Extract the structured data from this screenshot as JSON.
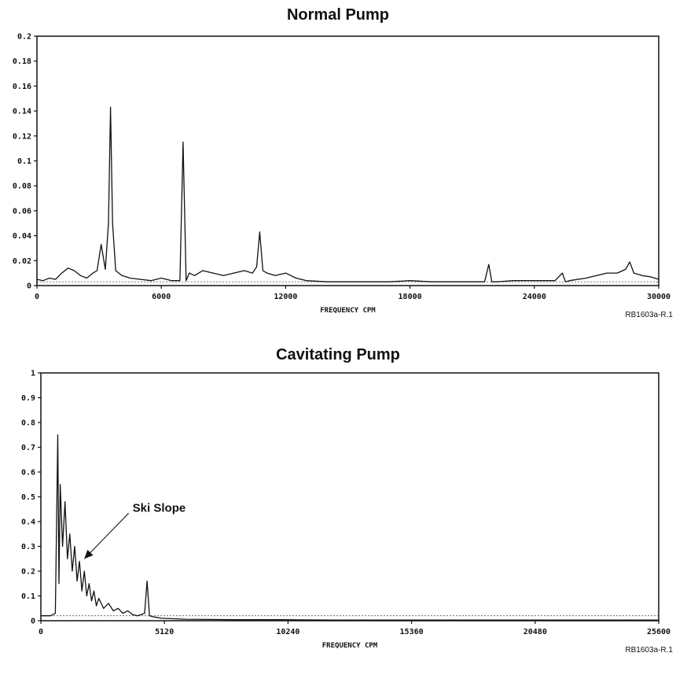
{
  "chart_data": [
    {
      "type": "line",
      "title": "Normal Pump",
      "xlabel": "FREQUENCY CPM",
      "ylabel": "",
      "xlim": [
        0,
        30000
      ],
      "ylim": [
        0,
        0.2
      ],
      "xticks": [
        0,
        6000,
        12000,
        18000,
        24000,
        30000
      ],
      "xtick_labels": [
        "0",
        "6000",
        "12000",
        "18000",
        "24000",
        "30000"
      ],
      "yticks": [
        0,
        0.02,
        0.04,
        0.06,
        0.08,
        0.1,
        0.12,
        0.14,
        0.16,
        0.18,
        0.2
      ],
      "ytick_labels": [
        "0",
        "0.02",
        "0.04",
        "0.06",
        "0.08",
        "0.1",
        "0.12",
        "0.14",
        "0.16",
        "0.18",
        "0.2"
      ],
      "grid": false,
      "reference_code": "RB1603a-R.1",
      "series": [
        {
          "x": [
            0,
            300,
            600,
            900,
            1200,
            1500,
            1800,
            2100,
            2400,
            2700,
            2900,
            3100,
            3300,
            3450,
            3550,
            3650,
            3800,
            4100,
            4500,
            5000,
            5500,
            6000,
            6500,
            6900,
            7050,
            7200,
            7350,
            7600,
            8000,
            8500,
            9000,
            9500,
            10000,
            10400,
            10600,
            10750,
            10900,
            11100,
            11500,
            12000,
            12500,
            13000,
            14000,
            15000,
            16000,
            17000,
            18000,
            19000,
            20000,
            21000,
            21600,
            21800,
            21950,
            22200,
            23000,
            24000,
            25000,
            25350,
            25500,
            25700,
            26500,
            27000,
            27500,
            28000,
            28400,
            28600,
            28800,
            29200,
            29600,
            30000
          ],
          "y": [
            0.005,
            0.004,
            0.006,
            0.005,
            0.01,
            0.014,
            0.012,
            0.008,
            0.006,
            0.01,
            0.012,
            0.033,
            0.013,
            0.05,
            0.143,
            0.05,
            0.012,
            0.008,
            0.006,
            0.005,
            0.004,
            0.006,
            0.004,
            0.004,
            0.115,
            0.004,
            0.01,
            0.008,
            0.012,
            0.01,
            0.008,
            0.01,
            0.012,
            0.01,
            0.015,
            0.043,
            0.012,
            0.01,
            0.008,
            0.01,
            0.006,
            0.004,
            0.003,
            0.003,
            0.003,
            0.003,
            0.004,
            0.003,
            0.003,
            0.003,
            0.003,
            0.017,
            0.003,
            0.003,
            0.004,
            0.004,
            0.004,
            0.01,
            0.003,
            0.004,
            0.006,
            0.008,
            0.01,
            0.01,
            0.013,
            0.019,
            0.01,
            0.008,
            0.007,
            0.005
          ]
        }
      ],
      "reference_line": 0.003
    },
    {
      "type": "line",
      "title": "Cavitating Pump",
      "xlabel": "FREQUENCY CPM",
      "ylabel": "",
      "xlim": [
        0,
        25600
      ],
      "ylim": [
        0,
        1
      ],
      "xticks": [
        0,
        5120,
        10240,
        15360,
        20480,
        25600
      ],
      "xtick_labels": [
        "0",
        "5120",
        "10240",
        "15360",
        "20480",
        "25600"
      ],
      "yticks": [
        0,
        0.1,
        0.2,
        0.3,
        0.4,
        0.5,
        0.6,
        0.7,
        0.8,
        0.9,
        1
      ],
      "ytick_labels": [
        "0",
        "0.1",
        "0.2",
        "0.3",
        "0.4",
        "0.5",
        "0.6",
        "0.7",
        "0.8",
        "0.9",
        "1"
      ],
      "grid": false,
      "reference_code": "RB1603a-R.1",
      "annotation": {
        "text": "Ski Slope",
        "x": 1800,
        "y": 0.25,
        "text_x": 3800,
        "text_y": 0.44
      },
      "series": [
        {
          "x": [
            0,
            400,
            600,
            700,
            750,
            800,
            900,
            1000,
            1100,
            1200,
            1300,
            1400,
            1500,
            1600,
            1700,
            1800,
            1900,
            2000,
            2100,
            2200,
            2300,
            2400,
            2600,
            2800,
            3000,
            3200,
            3400,
            3600,
            3800,
            4000,
            4300,
            4400,
            4500,
            4700,
            5000,
            5500,
            6000,
            7000,
            8000,
            10000,
            12000,
            15000,
            18000,
            20000,
            22000,
            24000,
            25600
          ],
          "y": [
            0.02,
            0.02,
            0.03,
            0.75,
            0.15,
            0.55,
            0.3,
            0.48,
            0.25,
            0.35,
            0.2,
            0.3,
            0.16,
            0.24,
            0.12,
            0.2,
            0.1,
            0.15,
            0.08,
            0.12,
            0.06,
            0.09,
            0.05,
            0.07,
            0.04,
            0.05,
            0.03,
            0.04,
            0.025,
            0.02,
            0.03,
            0.16,
            0.02,
            0.015,
            0.01,
            0.008,
            0.006,
            0.005,
            0.004,
            0.004,
            0.003,
            0.003,
            0.003,
            0.003,
            0.003,
            0.003,
            0.003
          ]
        }
      ],
      "reference_line": 0.02
    }
  ]
}
